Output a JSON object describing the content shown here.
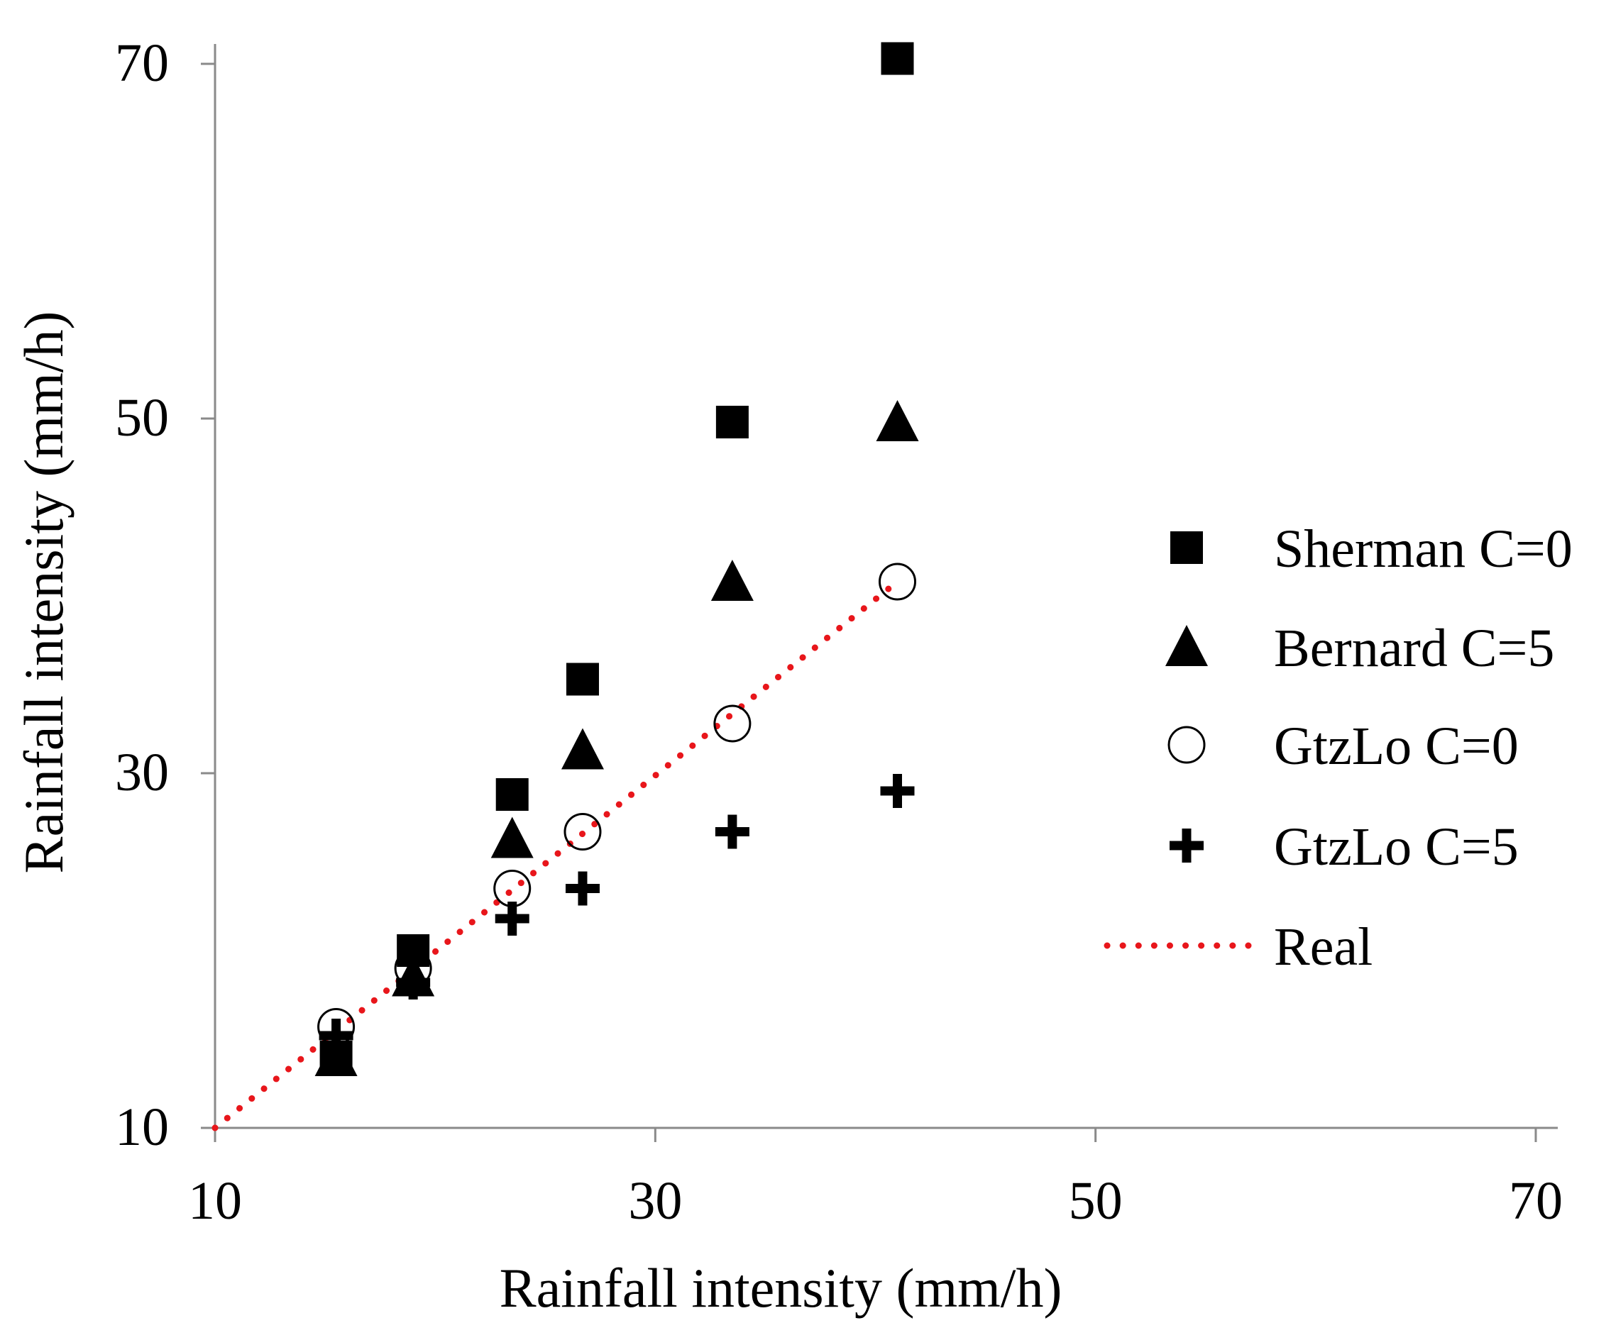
{
  "chart_data": {
    "type": "scatter",
    "title": "",
    "xlabel": "Rainfall intensity (mm/h)",
    "ylabel": "Rainfall intensity (mm/h)",
    "xlim": [
      10,
      71
    ],
    "ylim": [
      10,
      71
    ],
    "xticks": [
      10,
      30,
      50,
      70
    ],
    "yticks": [
      10,
      30,
      50,
      70
    ],
    "grid": false,
    "legend_position": "right",
    "series": [
      {
        "name": "Sherman C=0",
        "marker": "square",
        "color": "#000000",
        "points": [
          [
            15.5,
            14.0
          ],
          [
            19.0,
            20.0
          ],
          [
            23.5,
            28.8
          ],
          [
            26.7,
            35.3
          ],
          [
            33.5,
            49.8
          ],
          [
            41.0,
            70.3
          ]
        ]
      },
      {
        "name": "Bernard C=5",
        "marker": "triangle",
        "color": "#000000",
        "points": [
          [
            15.5,
            14.0
          ],
          [
            19.0,
            18.5
          ],
          [
            23.5,
            26.3
          ],
          [
            26.7,
            31.3
          ],
          [
            33.5,
            40.8
          ],
          [
            41.0,
            49.8
          ]
        ]
      },
      {
        "name": "GtzLo C=0",
        "marker": "circle-open",
        "color": "#000000",
        "points": [
          [
            15.5,
            15.7
          ],
          [
            19.0,
            19.0
          ],
          [
            23.5,
            23.5
          ],
          [
            26.7,
            26.7
          ],
          [
            33.5,
            32.8
          ],
          [
            41.0,
            40.8
          ]
        ]
      },
      {
        "name": "GtzLo C=5",
        "marker": "plus",
        "color": "#000000",
        "points": [
          [
            15.5,
            15.2
          ],
          [
            19.0,
            18.2
          ],
          [
            23.5,
            21.8
          ],
          [
            26.7,
            23.5
          ],
          [
            33.5,
            26.7
          ],
          [
            41.0,
            29.0
          ]
        ]
      },
      {
        "name": "Real",
        "marker": "dotted-line",
        "color": "#e8161b",
        "points": [
          [
            10,
            10
          ],
          [
            41.0,
            40.8
          ]
        ]
      }
    ]
  }
}
